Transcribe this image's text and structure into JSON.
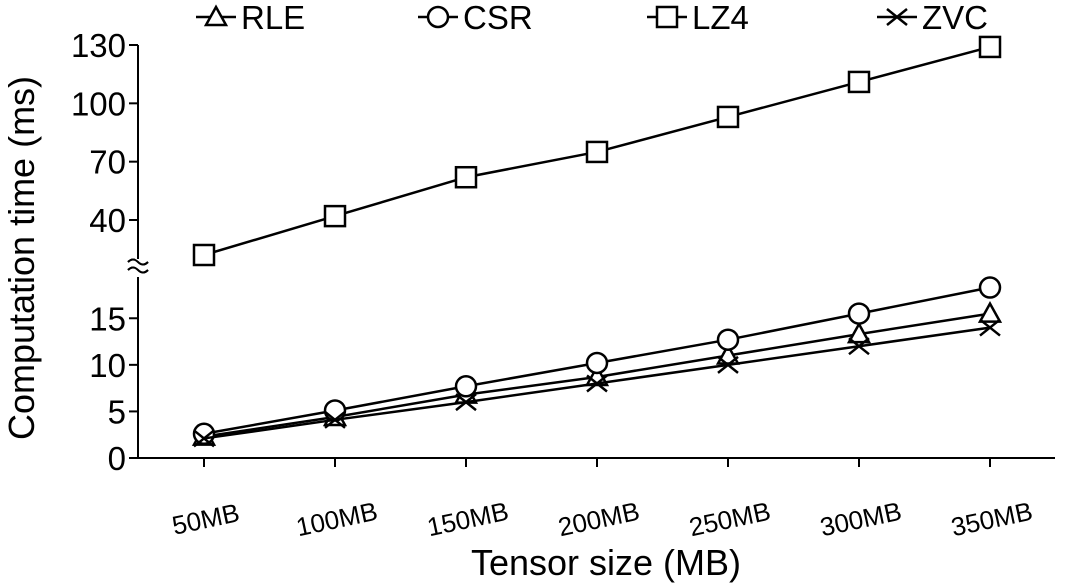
{
  "chart_data": {
    "type": "line",
    "title": "",
    "xlabel": "Tensor size (MB)",
    "ylabel": "Computation time (ms)",
    "categories": [
      "50MB",
      "100MB",
      "150MB",
      "200MB",
      "250MB",
      "300MB",
      "350MB"
    ],
    "axis_break": true,
    "lower_ylim": [
      0,
      19
    ],
    "lower_yticks": [
      0,
      5,
      10,
      15
    ],
    "upper_ylim": [
      22,
      130
    ],
    "upper_yticks": [
      40,
      70,
      100,
      130
    ],
    "legend_position": "top",
    "grid": false,
    "series": [
      {
        "name": "RLE",
        "marker": "triangle",
        "values": [
          2.3,
          4.4,
          6.8,
          8.7,
          11.0,
          13.3,
          15.5
        ]
      },
      {
        "name": "CSR",
        "marker": "circle",
        "values": [
          2.6,
          5.1,
          7.7,
          10.2,
          12.7,
          15.5,
          18.3
        ]
      },
      {
        "name": "LZ4",
        "marker": "square",
        "values": [
          22,
          42,
          62,
          75,
          93,
          111,
          129
        ]
      },
      {
        "name": "ZVC",
        "marker": "x",
        "values": [
          2.1,
          4.1,
          6.0,
          8.0,
          10.0,
          12.0,
          14.0
        ]
      }
    ]
  }
}
